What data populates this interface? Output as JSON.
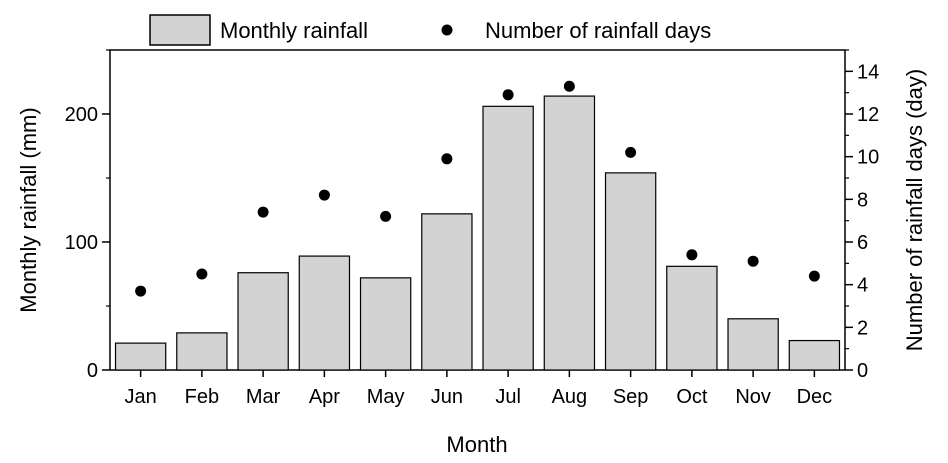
{
  "chart_data": {
    "type": "bar",
    "categories": [
      "Jan",
      "Feb",
      "Mar",
      "Apr",
      "May",
      "Jun",
      "Jul",
      "Aug",
      "Sep",
      "Oct",
      "Nov",
      "Dec"
    ],
    "series": [
      {
        "name": "Monthly rainfall",
        "type": "bar",
        "axis": "left",
        "color": "#d3d3d3",
        "values": [
          21,
          29,
          76,
          89,
          72,
          122,
          206,
          214,
          154,
          81,
          40,
          23
        ]
      },
      {
        "name": "Number of rainfall days",
        "type": "scatter",
        "axis": "right",
        "color": "#000000",
        "values": [
          3.7,
          4.5,
          7.4,
          8.2,
          7.2,
          9.9,
          12.9,
          13.3,
          10.2,
          5.4,
          5.1,
          4.4
        ]
      }
    ],
    "xlabel": "Month",
    "ylabel": "Monthly rainfall (mm)",
    "y2label": "Number of rainfall days (day)",
    "ylim": [
      0,
      250
    ],
    "y2lim": [
      0,
      15
    ],
    "yticks": [
      0,
      100,
      200
    ],
    "y2ticks": [
      0,
      2,
      4,
      6,
      8,
      10,
      12,
      14
    ],
    "legend_position": "top-center",
    "grid": false
  }
}
